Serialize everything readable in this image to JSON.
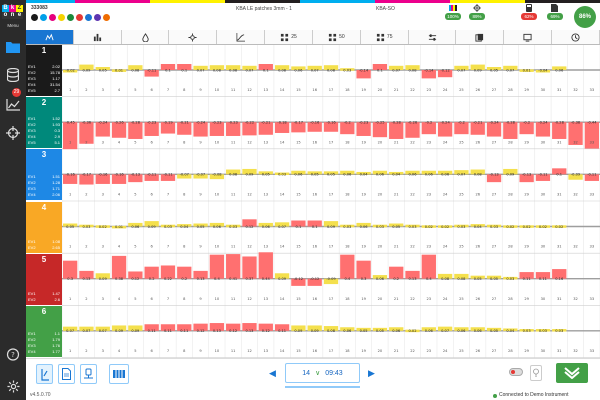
{
  "topstrip_colors": [
    "#00aeef",
    "#ec008c",
    "#fff200",
    "#231f20",
    "#00aeef",
    "#ec008c",
    "#fff200",
    "#231f20"
  ],
  "header": {
    "job_id": "333083",
    "job_name": "KBA LE patches 3mm - 1",
    "press": "KBA-SO",
    "ink_dots": [
      "#1a1a1a",
      "#00a0e9",
      "#e6007e",
      "#f5d300",
      "#1b8a3a",
      "#e53935",
      "#1976d2",
      "#5e35b1",
      "#ef6c00"
    ],
    "kpis": [
      {
        "value": "100%",
        "color": "#43a047",
        "icon": "cmyk-bars-icon"
      },
      {
        "value": "89%",
        "color": "#43a047",
        "icon": "register-target-icon"
      },
      {
        "value": "62%",
        "color": "#e53935",
        "icon": "density-meter-icon"
      },
      {
        "value": "69%",
        "color": "#43a047",
        "icon": "document-icon"
      }
    ],
    "overall": "86%"
  },
  "tabs": [
    {
      "label": "",
      "icon": "zones-icon"
    },
    {
      "label": "",
      "icon": "bar-chart-icon"
    },
    {
      "label": "",
      "icon": "ink-drop-icon"
    },
    {
      "label": "",
      "icon": "gear-icon"
    },
    {
      "label": "",
      "icon": "curve-icon"
    },
    {
      "label": "25",
      "icon": "grid-icon"
    },
    {
      "label": "50",
      "icon": "grid-icon"
    },
    {
      "label": "75",
      "icon": "grid-icon"
    },
    {
      "label": "",
      "icon": "sliders-icon"
    },
    {
      "label": "",
      "icon": "layers-icon"
    },
    {
      "label": "",
      "icon": "screen-icon"
    },
    {
      "label": "",
      "icon": "clock-icon"
    }
  ],
  "sidebar": {
    "logo_letters": [
      "B",
      "k",
      "Z",
      "o",
      "n",
      "e"
    ],
    "menu_label": "Menu",
    "badge": "29",
    "version": "v4.5.0.70"
  },
  "zones": [
    {
      "num": "1",
      "color": "#1a1a1a",
      "rows": [
        [
          "EV1",
          "2.02"
        ],
        [
          "EV2",
          "15.78"
        ],
        [
          "EV3",
          "1.17"
        ],
        [
          "EV4",
          "31.54"
        ],
        [
          "EV5",
          "2.7"
        ]
      ]
    },
    {
      "num": "2",
      "color": "#00897b",
      "rows": [
        [
          "EV1",
          "1.52"
        ],
        [
          "EV2",
          "1.93"
        ],
        [
          "EV3",
          "0.3"
        ],
        [
          "EV4",
          "2.9"
        ],
        [
          "EV5",
          "5.1"
        ]
      ]
    },
    {
      "num": "3",
      "color": "#1e88e5",
      "rows": [
        [
          "EV1",
          "1.51"
        ],
        [
          "EV2",
          "1.28"
        ],
        [
          "EV3",
          "1.71"
        ],
        [
          "EV4",
          "2.06"
        ]
      ]
    },
    {
      "num": "4",
      "color": "#f9a825",
      "rows": [
        [
          "EV1",
          "1.08"
        ],
        [
          "EV2",
          "2.65"
        ]
      ]
    },
    {
      "num": "5",
      "color": "#c62828",
      "rows": [
        [
          "EV1",
          "1.47"
        ],
        [
          "EV2",
          "2.6"
        ]
      ]
    },
    {
      "num": "6",
      "color": "#43a047",
      "rows": [
        [
          "EV1",
          "1.1"
        ],
        [
          "EV2",
          "1.79"
        ],
        [
          "EV3",
          "1.76"
        ],
        [
          "EV4",
          "1.77"
        ]
      ]
    }
  ],
  "chart_data": {
    "type": "bar",
    "categories": [
      "1",
      "2",
      "3",
      "4",
      "5",
      "6",
      "7",
      "8",
      "9",
      "10",
      "11",
      "12",
      "13",
      "14",
      "15",
      "16",
      "17",
      "18",
      "19",
      "20",
      "21",
      "22",
      "23",
      "24",
      "25",
      "26",
      "27",
      "28",
      "29",
      "30",
      "31",
      "32",
      "33"
    ],
    "series": [
      {
        "name": "1",
        "values": [
          -0.02,
          0.09,
          0.05,
          0.01,
          0.08,
          -0.11,
          0.1,
          0.1,
          0.07,
          0.08,
          0.08,
          0.07,
          0.1,
          0.08,
          0.06,
          0.07,
          0.08,
          0.03,
          -0.14,
          0.1,
          0.07,
          0.08,
          -0.14,
          -0.12,
          0.07,
          0.09,
          0.05,
          0.07,
          0.01,
          -0.04,
          0.06,
          0,
          0
        ]
      },
      {
        "name": "2",
        "values": [
          -0.45,
          -0.36,
          -0.24,
          -0.26,
          -0.28,
          -0.23,
          -0.19,
          -0.21,
          -0.24,
          -0.23,
          -0.23,
          -0.22,
          -0.21,
          -0.18,
          -0.17,
          -0.16,
          -0.16,
          -0.2,
          -0.23,
          -0.25,
          -0.28,
          -0.26,
          -0.2,
          -0.24,
          -0.2,
          -0.21,
          -0.24,
          -0.28,
          -0.2,
          -0.24,
          -0.28,
          -0.38,
          -0.44
        ]
      },
      {
        "name": "3",
        "values": [
          -0.16,
          -0.17,
          -0.16,
          -0.16,
          -0.13,
          -0.11,
          -0.11,
          -0.07,
          -0.07,
          -0.08,
          0.08,
          0.09,
          0.05,
          0.03,
          0.06,
          0.05,
          0.05,
          0.06,
          0.04,
          0.06,
          0.04,
          0.06,
          0.06,
          0.06,
          0.07,
          0.08,
          -0.13,
          0.09,
          -0.13,
          -0.11,
          0.1,
          -0.09,
          -0.11
        ]
      },
      {
        "name": "4",
        "values": [
          0.05,
          0.03,
          0.02,
          0.01,
          0.06,
          0.09,
          0.03,
          0.04,
          0.05,
          0.06,
          0.03,
          0.12,
          0.06,
          0.07,
          0.1,
          0.1,
          0.09,
          0.03,
          0.06,
          0.03,
          0.05,
          0.03,
          0.02,
          0.02,
          0.03,
          0.04,
          0.03,
          0.02,
          0.02,
          0.02,
          0.02,
          0,
          0
        ]
      },
      {
        "name": "5",
        "values": [
          0.3,
          0.13,
          0.09,
          0.38,
          0.12,
          0.2,
          0.22,
          0.2,
          0.13,
          0.4,
          0.41,
          0.37,
          0.44,
          0.09,
          -0.12,
          -0.12,
          -0.09,
          0.4,
          0.3,
          0.06,
          0.2,
          0.13,
          0.4,
          0.08,
          0.08,
          0.05,
          0.05,
          0.03,
          0.11,
          0.11,
          0.16,
          0,
          0
        ]
      },
      {
        "name": "6",
        "values": [
          0.07,
          0.07,
          0.07,
          0.09,
          0.09,
          0.11,
          0.11,
          0.11,
          0.12,
          0.13,
          0.12,
          0.13,
          0.12,
          0.11,
          0.09,
          0.09,
          0.08,
          0.06,
          0.05,
          0.05,
          0.06,
          0.02,
          0.06,
          0.07,
          0.06,
          0.06,
          0.05,
          0.04,
          0.03,
          0.03,
          0.03,
          0,
          0
        ]
      }
    ],
    "ylim": [
      -0.5,
      0.5
    ]
  },
  "bottom": {
    "page_number": "14",
    "time": "09:43",
    "connection_status": "Connected to Demo Instrument"
  },
  "colors": {
    "bar_high": "#ff7070",
    "bar_ok": "#f4e04d",
    "accent": "#1976d2",
    "ok": "#43a047"
  }
}
